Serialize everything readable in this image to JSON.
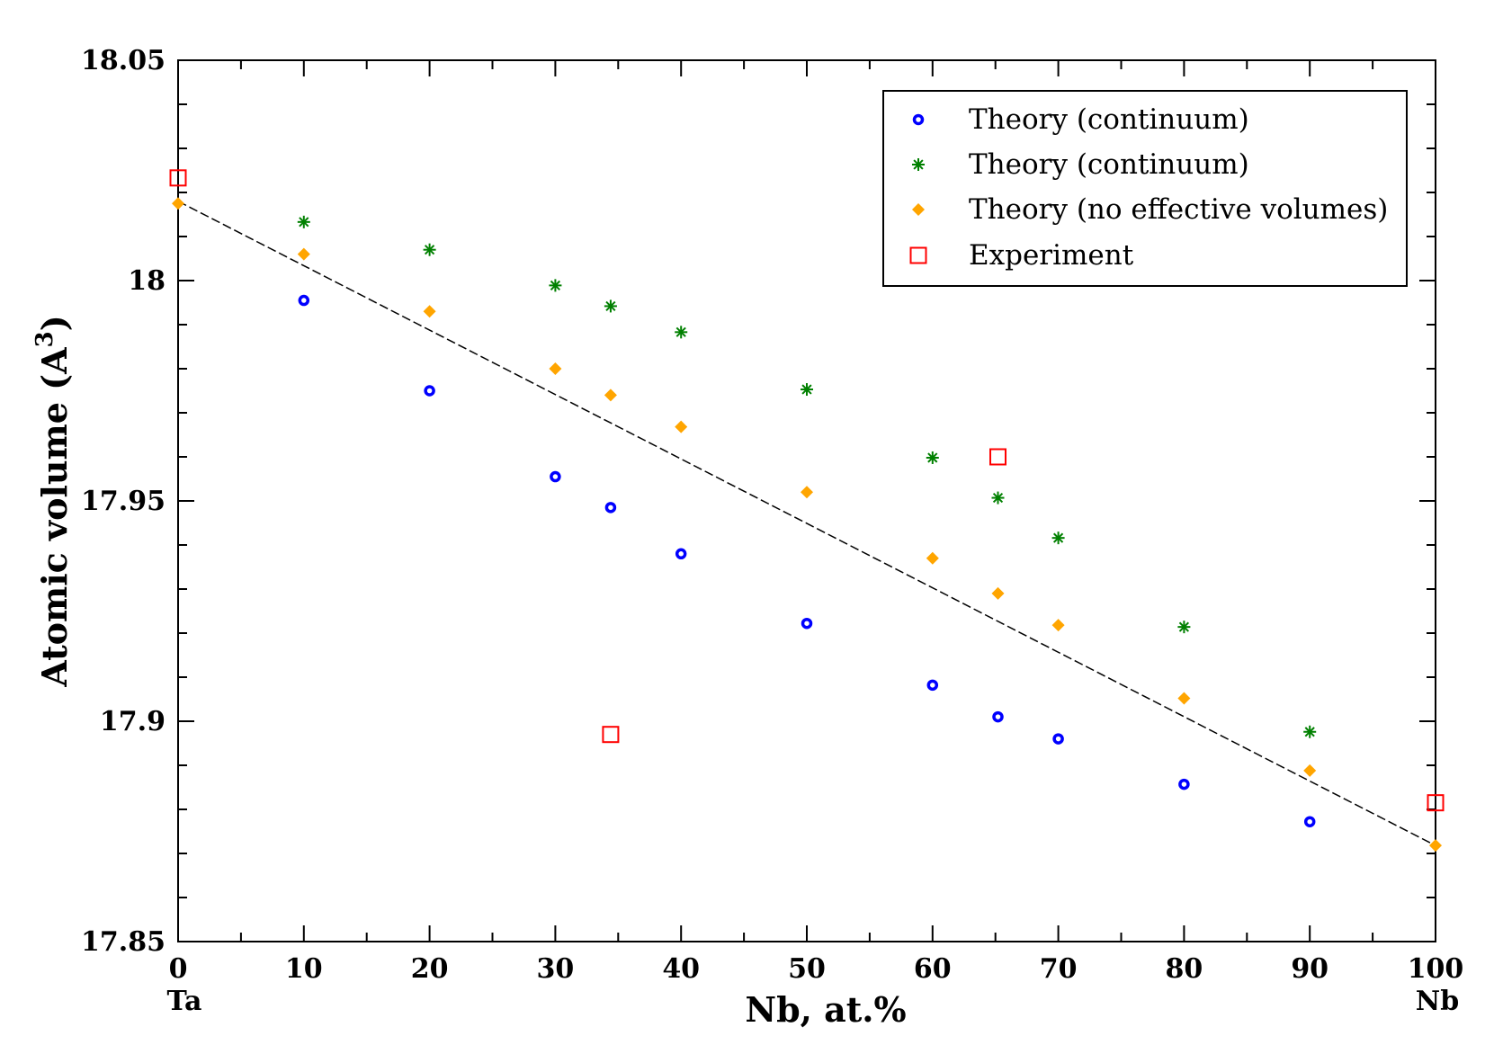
{
  "chart_data": {
    "type": "scatter",
    "xlabel": "Nb, at.%",
    "ylabel": "Atomic volume (A",
    "ylabel_superscript": "3",
    "ylabel_close": ")",
    "x_end_labels": {
      "left": "Ta",
      "right": "Nb"
    },
    "xlim": [
      0,
      100
    ],
    "ylim": [
      17.85,
      18.05
    ],
    "x_ticks": [
      0,
      10,
      20,
      30,
      40,
      50,
      60,
      70,
      80,
      90,
      100
    ],
    "x_tick_labels": [
      "0",
      "10",
      "20",
      "30",
      "40",
      "50",
      "60",
      "70",
      "80",
      "90",
      "100"
    ],
    "y_ticks": [
      17.85,
      17.9,
      17.95,
      18,
      18.05
    ],
    "y_tick_labels": [
      "17.85",
      "17.9",
      "17.95",
      "18",
      "18.05"
    ],
    "legend_position": "top-right",
    "series": [
      {
        "name": "Theory (continuum)",
        "marker": "circle",
        "color": "#0000ff",
        "points": [
          [
            10,
            17.9955
          ],
          [
            20,
            17.975
          ],
          [
            30,
            17.9555
          ],
          [
            34.4,
            17.9485
          ],
          [
            40,
            17.938
          ],
          [
            50,
            17.9222
          ],
          [
            60,
            17.9082
          ],
          [
            65.2,
            17.901
          ],
          [
            70,
            17.896
          ],
          [
            80,
            17.8857
          ],
          [
            90,
            17.8772
          ]
        ]
      },
      {
        "name": "Theory (continuum)",
        "marker": "star",
        "color": "#008000",
        "points": [
          [
            10,
            18.0133
          ],
          [
            20,
            18.007
          ],
          [
            30,
            17.9989
          ],
          [
            34.4,
            17.9942
          ],
          [
            40,
            17.9883
          ],
          [
            50,
            17.9753
          ],
          [
            60,
            17.9598
          ],
          [
            65.2,
            17.9507
          ],
          [
            70,
            17.9416
          ],
          [
            80,
            17.9214
          ],
          [
            90,
            17.8976
          ]
        ]
      },
      {
        "name": "Theory (no effective volumes)",
        "marker": "diamond",
        "color": "#ffa500",
        "points": [
          [
            0,
            18.0175
          ],
          [
            10,
            18.006
          ],
          [
            20,
            17.993
          ],
          [
            30,
            17.98
          ],
          [
            34.4,
            17.974
          ],
          [
            40,
            17.9668
          ],
          [
            50,
            17.952
          ],
          [
            60,
            17.937
          ],
          [
            65.2,
            17.929
          ],
          [
            70,
            17.9218
          ],
          [
            80,
            17.9052
          ],
          [
            90,
            17.8888
          ],
          [
            100,
            17.8718
          ]
        ]
      },
      {
        "name": "Experiment",
        "marker": "open-square",
        "color": "#ff0000",
        "points": [
          [
            0,
            18.0233
          ],
          [
            34.4,
            17.897
          ],
          [
            65.2,
            17.96
          ],
          [
            100,
            17.8815
          ]
        ]
      }
    ],
    "fit_line": {
      "style": "dashed",
      "color": "#000000",
      "points": [
        [
          0,
          18.018
        ],
        [
          100,
          17.8718
        ]
      ]
    }
  }
}
